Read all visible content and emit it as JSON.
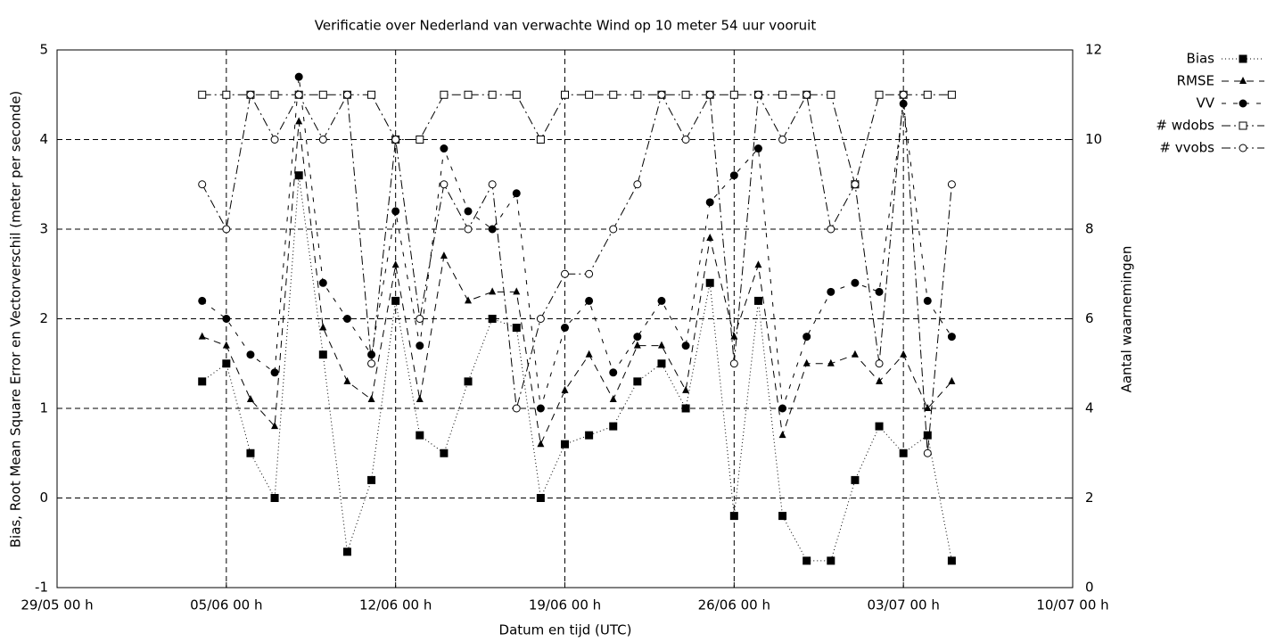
{
  "chart_data": {
    "type": "line",
    "title": "Verificatie over Nederland van verwachte Wind op 10 meter 54 uur vooruit",
    "xlabel": "Datum en tijd (UTC)",
    "ylabel": "Bias, Root Mean Square Error en Vectorverschil (meter per seconde)",
    "y2label": "Aantal waarnemingen",
    "x": [
      "04/06 00 h",
      "05/06 00 h",
      "06/06 00 h",
      "07/06 00 h",
      "08/06 00 h",
      "09/06 00 h",
      "10/06 00 h",
      "11/06 00 h",
      "12/06 00 h",
      "13/06 00 h",
      "14/06 00 h",
      "15/06 00 h",
      "16/06 00 h",
      "17/06 00 h",
      "18/06 00 h",
      "19/06 00 h",
      "20/06 00 h",
      "21/06 00 h",
      "22/06 00 h",
      "23/06 00 h",
      "24/06 00 h",
      "25/06 00 h",
      "26/06 00 h",
      "27/06 00 h",
      "28/06 00 h",
      "29/06 00 h",
      "30/06 00 h",
      "01/07 00 h",
      "02/07 00 h",
      "03/07 00 h",
      "04/07 00 h",
      "05/07 00 h"
    ],
    "xlim": [
      "29/05 00 h",
      "10/07 00 h"
    ],
    "xticks": [
      "29/05 00 h",
      "05/06 00 h",
      "12/06 00 h",
      "19/06 00 h",
      "26/06 00 h",
      "03/07 00 h",
      "10/07 00 h"
    ],
    "ylim": [
      -1,
      5
    ],
    "yticks": [
      -1,
      0,
      1,
      2,
      3,
      4,
      5
    ],
    "y2lim": [
      0,
      12
    ],
    "y2ticks": [
      0,
      2,
      4,
      6,
      8,
      10,
      12
    ],
    "grid": true,
    "legend": "outside-top-right",
    "series": [
      {
        "name": "Bias",
        "color": "#000000",
        "marker": "filled-square",
        "dash": "dotted",
        "values": [
          1.3,
          1.5,
          0.5,
          0.0,
          3.6,
          1.6,
          -0.6,
          0.2,
          2.2,
          0.7,
          0.5,
          1.3,
          2.0,
          1.9,
          0.0,
          0.6,
          0.7,
          0.8,
          1.3,
          1.5,
          1.0,
          2.4,
          -0.2,
          2.2,
          -0.2,
          -0.7,
          -0.7,
          0.2,
          0.8,
          0.5,
          0.7,
          -0.7
        ]
      },
      {
        "name": "RMSE",
        "color": "#000000",
        "marker": "filled-triangle",
        "dash": "dashed",
        "values": [
          1.8,
          1.7,
          1.1,
          0.8,
          4.2,
          1.9,
          1.3,
          1.1,
          2.6,
          1.1,
          2.7,
          2.2,
          2.3,
          2.3,
          0.6,
          1.2,
          1.6,
          1.1,
          1.7,
          1.7,
          1.2,
          2.9,
          1.8,
          2.6,
          0.7,
          1.5,
          1.5,
          1.6,
          1.3,
          1.6,
          1.0,
          1.3
        ]
      },
      {
        "name": "VV",
        "color": "#000000",
        "marker": "filled-circle",
        "dash": "short-dashed",
        "values": [
          2.2,
          2.0,
          1.6,
          1.4,
          4.7,
          2.4,
          2.0,
          1.6,
          3.2,
          1.7,
          3.9,
          3.2,
          3.0,
          3.4,
          1.0,
          1.9,
          2.2,
          1.4,
          1.8,
          2.2,
          1.7,
          3.3,
          3.6,
          3.9,
          1.0,
          1.8,
          2.3,
          2.4,
          2.3,
          4.4,
          2.2,
          1.8
        ]
      },
      {
        "name": "# wdobs",
        "color": "#000000",
        "marker": "open-square",
        "dash": "dash-dot",
        "axis": "y2",
        "values": [
          11,
          11,
          11,
          11,
          11,
          11,
          11,
          11,
          10,
          10,
          11,
          11,
          11,
          11,
          10,
          11,
          11,
          11,
          11,
          11,
          11,
          11,
          11,
          11,
          11,
          11,
          11,
          9,
          11,
          11,
          11,
          11
        ]
      },
      {
        "name": "# vvobs",
        "color": "#000000",
        "marker": "open-circle",
        "dash": "dash-dot",
        "axis": "y2",
        "values": [
          9,
          8,
          11,
          10,
          11,
          10,
          11,
          5,
          10,
          6,
          9,
          8,
          9,
          4,
          6,
          7,
          7,
          8,
          9,
          11,
          10,
          11,
          5,
          11,
          10,
          11,
          8,
          9,
          5,
          11,
          3,
          9
        ]
      }
    ]
  }
}
